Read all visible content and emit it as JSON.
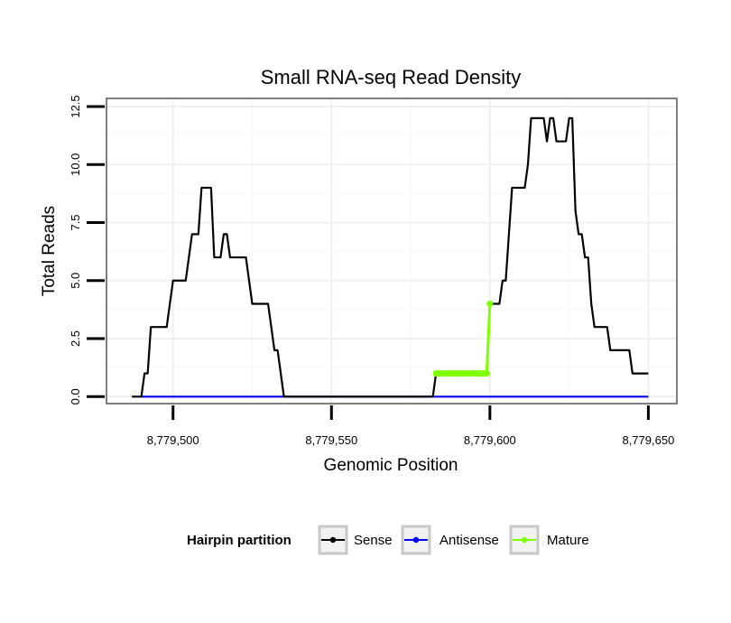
{
  "chart_data": {
    "type": "line",
    "title": "Small RNA-seq Read Density",
    "xlabel": "Genomic Position",
    "ylabel": "Total Reads",
    "xlim": [
      8779479,
      8779659
    ],
    "ylim": [
      -0.3,
      12.85
    ],
    "x_ticks": [
      8779500,
      8779550,
      8779600,
      8779650
    ],
    "x_tick_labels": [
      "8,779,500",
      "8,779,550",
      "8,779,600",
      "8,779,650"
    ],
    "y_ticks": [
      0,
      2.5,
      5,
      7.5,
      10,
      12.5
    ],
    "y_tick_labels": [
      "0.0",
      "2.5",
      "5.0",
      "7.5",
      "10.0",
      "12.5"
    ],
    "grid": true,
    "legend": {
      "title": "Hairpin partition",
      "position": "bottom",
      "entries": [
        {
          "label": "Sense",
          "color": "#000000"
        },
        {
          "label": "Antisense",
          "color": "#0000ff"
        },
        {
          "label": "Mature",
          "color": "#7fff00"
        }
      ]
    },
    "series": [
      {
        "name": "Sense",
        "color": "#000000",
        "points": [
          [
            8779487,
            0
          ],
          [
            8779490,
            0
          ],
          [
            8779491,
            1
          ],
          [
            8779492,
            1
          ],
          [
            8779493,
            3
          ],
          [
            8779498,
            3
          ],
          [
            8779500,
            5
          ],
          [
            8779504,
            5
          ],
          [
            8779506,
            7
          ],
          [
            8779508,
            7
          ],
          [
            8779509,
            9
          ],
          [
            8779512,
            9
          ],
          [
            8779513,
            6
          ],
          [
            8779515,
            6
          ],
          [
            8779516,
            7
          ],
          [
            8779517,
            7
          ],
          [
            8779518,
            6
          ],
          [
            8779523,
            6
          ],
          [
            8779525,
            4
          ],
          [
            8779530,
            4
          ],
          [
            8779532,
            2
          ],
          [
            8779533,
            2
          ],
          [
            8779535,
            0
          ],
          [
            8779582,
            0
          ]
        ]
      },
      {
        "name": "Mature",
        "color": "#7fff00",
        "marker": true,
        "points": [
          [
            8779583,
            1
          ],
          [
            8779584,
            1
          ],
          [
            8779585,
            1
          ],
          [
            8779586,
            1
          ],
          [
            8779587,
            1
          ],
          [
            8779588,
            1
          ],
          [
            8779589,
            1
          ],
          [
            8779590,
            1
          ],
          [
            8779591,
            1
          ],
          [
            8779592,
            1
          ],
          [
            8779593,
            1
          ],
          [
            8779594,
            1
          ],
          [
            8779595,
            1
          ],
          [
            8779596,
            1
          ],
          [
            8779597,
            1
          ],
          [
            8779598,
            1
          ],
          [
            8779599,
            1
          ],
          [
            8779600,
            4
          ]
        ]
      },
      {
        "name": "Sense",
        "color": "#000000",
        "points": [
          [
            8779582,
            0
          ],
          [
            8779583,
            1
          ],
          [
            8779599,
            1
          ],
          [
            8779600,
            4
          ],
          [
            8779603,
            4
          ],
          [
            8779604,
            5
          ],
          [
            8779605,
            5
          ],
          [
            8779607,
            9
          ],
          [
            8779611,
            9
          ],
          [
            8779612,
            10
          ],
          [
            8779613,
            12
          ],
          [
            8779617,
            12
          ],
          [
            8779618,
            11
          ],
          [
            8779619,
            12
          ],
          [
            8779620,
            12
          ],
          [
            8779621,
            11
          ],
          [
            8779624,
            11
          ],
          [
            8779625,
            12
          ],
          [
            8779626,
            12
          ],
          [
            8779627,
            8
          ],
          [
            8779628,
            7
          ],
          [
            8779629,
            7
          ],
          [
            8779630,
            6
          ],
          [
            8779631,
            6
          ],
          [
            8779632,
            4
          ],
          [
            8779633,
            3
          ],
          [
            8779637,
            3
          ],
          [
            8779638,
            2
          ],
          [
            8779644,
            2
          ],
          [
            8779645,
            1
          ],
          [
            8779650,
            1
          ]
        ]
      },
      {
        "name": "Antisense",
        "color": "#0000ff",
        "points": [
          [
            8779490,
            0
          ],
          [
            8779650,
            0
          ]
        ]
      }
    ]
  }
}
